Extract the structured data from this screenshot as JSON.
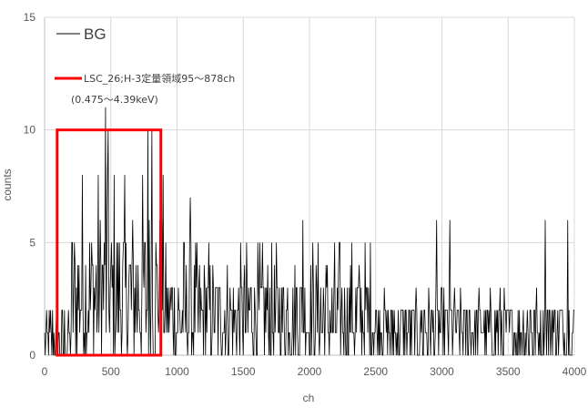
{
  "chart_data": {
    "type": "line",
    "title": "",
    "xlabel": "ch",
    "ylabel": "counts",
    "xlim": [
      0,
      4000
    ],
    "ylim": [
      0,
      15
    ],
    "x_ticks": [
      0,
      500,
      1000,
      1500,
      2000,
      2500,
      3000,
      3500,
      4000
    ],
    "y_ticks": [
      0,
      5,
      10,
      15
    ],
    "grid": true,
    "legend_position": "top-left",
    "series": [
      {
        "name": "BG",
        "color": "#000000",
        "description_of_values": "background spectrum counts per channel, channels 0-4000",
        "x_start": 0,
        "x_end": 4000,
        "approx_level_by_range": [
          {
            "x_range": [
              0,
              200
            ],
            "typical_min": 0,
            "typical_max": 2
          },
          {
            "x_range": [
              200,
              900
            ],
            "typical_min": 0,
            "typical_max": 8
          },
          {
            "x_range": [
              900,
              2500
            ],
            "typical_min": 0,
            "typical_max": 5
          },
          {
            "x_range": [
              2500,
              4000
            ],
            "typical_min": 0,
            "typical_max": 3
          }
        ],
        "notable_points": [
          {
            "x": 460,
            "y": 11
          },
          {
            "x": 480,
            "y": 10
          },
          {
            "x": 780,
            "y": 10
          },
          {
            "x": 810,
            "y": 10
          },
          {
            "x": 1100,
            "y": 7
          },
          {
            "x": 1950,
            "y": 6
          },
          {
            "x": 2960,
            "y": 6
          },
          {
            "x": 3060,
            "y": 6
          },
          {
            "x": 3780,
            "y": 6
          },
          {
            "x": 3950,
            "y": 6
          }
        ]
      }
    ],
    "roi": {
      "label_line1": "LSC_26;H-3定量領域95～878ch",
      "label_line2": "(0.475～4.39keV)",
      "x_range": [
        95,
        878
      ],
      "y_range": [
        0,
        10
      ],
      "color": "#ff0000"
    },
    "colors": {
      "grid": "#d9d9d9",
      "axis": "#bfbfbf",
      "tick_text": "#595959",
      "series": "#000000",
      "roi": "#ff0000"
    }
  }
}
